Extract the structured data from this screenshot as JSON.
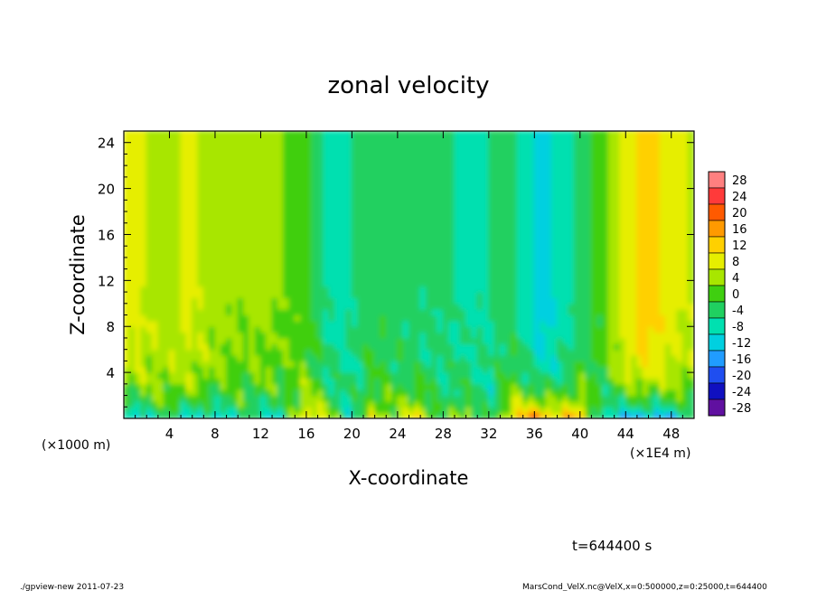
{
  "chart_data": {
    "type": "heatmap",
    "title": "zonal velocity",
    "xlabel": "X-coordinate",
    "ylabel": "Z-coordinate",
    "x_unit_left": "(×1000 m)",
    "x_unit_right": "(×1E4 m)",
    "xlim": [
      0,
      50
    ],
    "ylim": [
      0,
      25
    ],
    "x_ticks": [
      4,
      8,
      12,
      16,
      20,
      24,
      28,
      32,
      36,
      40,
      44,
      48
    ],
    "y_ticks": [
      4,
      8,
      12,
      16,
      20,
      24
    ],
    "colorbar": {
      "levels": [
        28,
        24,
        20,
        16,
        12,
        8,
        4,
        0,
        -4,
        -8,
        -12,
        -16,
        -20,
        -24,
        -28
      ],
      "colors": [
        "#ff8080",
        "#ff3a3a",
        "#ff5a00",
        "#ff9a00",
        "#ffd000",
        "#e6ee00",
        "#a8e600",
        "#3fcf10",
        "#20d060",
        "#00e0b0",
        "#00d0e0",
        "#209cff",
        "#1f4ef0",
        "#1010c0",
        "#6010a0"
      ]
    },
    "field_profile": {
      "x": [
        0,
        2,
        4,
        6,
        8,
        10,
        12,
        14,
        16,
        18,
        20,
        22,
        24,
        26,
        28,
        30,
        32,
        34,
        36,
        37,
        38,
        40,
        42,
        44,
        46,
        48,
        50
      ],
      "upper_value": [
        9,
        6,
        5,
        7,
        4,
        2,
        3,
        2,
        0,
        -7,
        -6,
        -3,
        -4,
        -6,
        -5,
        -7,
        -6,
        -4,
        -10,
        -13,
        -9,
        -5,
        0,
        8,
        13,
        8,
        5
      ],
      "surface_value": [
        -18,
        -8,
        -6,
        -10,
        -12,
        -6,
        -8,
        -10,
        12,
        4,
        -8,
        8,
        2,
        12,
        -6,
        8,
        -8,
        12,
        18,
        20,
        10,
        16,
        -10,
        -14,
        -18,
        -14,
        -6
      ]
    }
  },
  "annotations": {
    "time": "t=644400 s",
    "footer_left": "./gpview-new   2011-07-23",
    "footer_right": "MarsCond_VelX.nc@VelX,x=0:500000,z=0:25000,t=644400"
  }
}
